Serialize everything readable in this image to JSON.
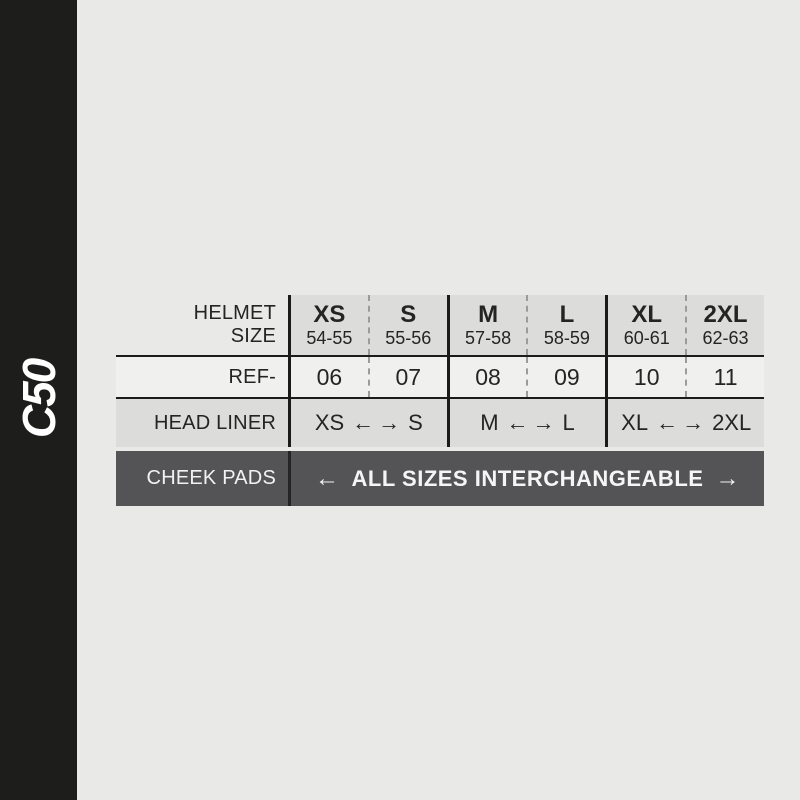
{
  "colors": {
    "bg": "#e9e9e8",
    "panel": "#1d1d1b",
    "cellgray": "#dcdcdb",
    "refbg": "#f0f0ef",
    "dark": "#545456",
    "line": "#1b1b1b",
    "dash": "#9b9b9b",
    "text": "#242424",
    "light": "#f2f2f2"
  },
  "sidebar": {
    "logo": "C50"
  },
  "table": {
    "icons": {
      "left_arrow": "←",
      "right_arrow": "→"
    },
    "header": {
      "label_line1": "HELMET",
      "label_line2": "SIZE",
      "columns": [
        {
          "size": "XS",
          "range": "54-55"
        },
        {
          "size": "S",
          "range": "55-56"
        },
        {
          "size": "M",
          "range": "57-58"
        },
        {
          "size": "L",
          "range": "58-59"
        },
        {
          "size": "XL",
          "range": "60-61"
        },
        {
          "size": "2XL",
          "range": "62-63"
        }
      ]
    },
    "ref": {
      "label": "REF-",
      "values": [
        "06",
        "07",
        "08",
        "09",
        "10",
        "11"
      ]
    },
    "head_liner": {
      "label": "HEAD LINER",
      "spans": [
        {
          "left": "XS",
          "right": "S"
        },
        {
          "left": "M",
          "right": "L"
        },
        {
          "left": "XL",
          "right": "2XL"
        }
      ]
    },
    "cheek_pads": {
      "label": "CHEEK PADS",
      "value": "ALL SIZES INTERCHANGEABLE"
    }
  },
  "chart_data": {
    "type": "table",
    "title": "C50 helmet size chart",
    "columns": [
      "XS 54-55",
      "S 55-56",
      "M 57-58",
      "L 58-59",
      "XL 60-61",
      "2XL 62-63"
    ],
    "rows": [
      {
        "label": "REF-",
        "values": [
          "06",
          "07",
          "08",
          "09",
          "10",
          "11"
        ]
      },
      {
        "label": "HEAD LINER",
        "values": [
          "XS ← → S",
          "M ← → L",
          "XL ← → 2XL"
        ]
      },
      {
        "label": "CHEEK PADS",
        "values": [
          "← ALL SIZES INTERCHANGEABLE →"
        ]
      }
    ]
  }
}
